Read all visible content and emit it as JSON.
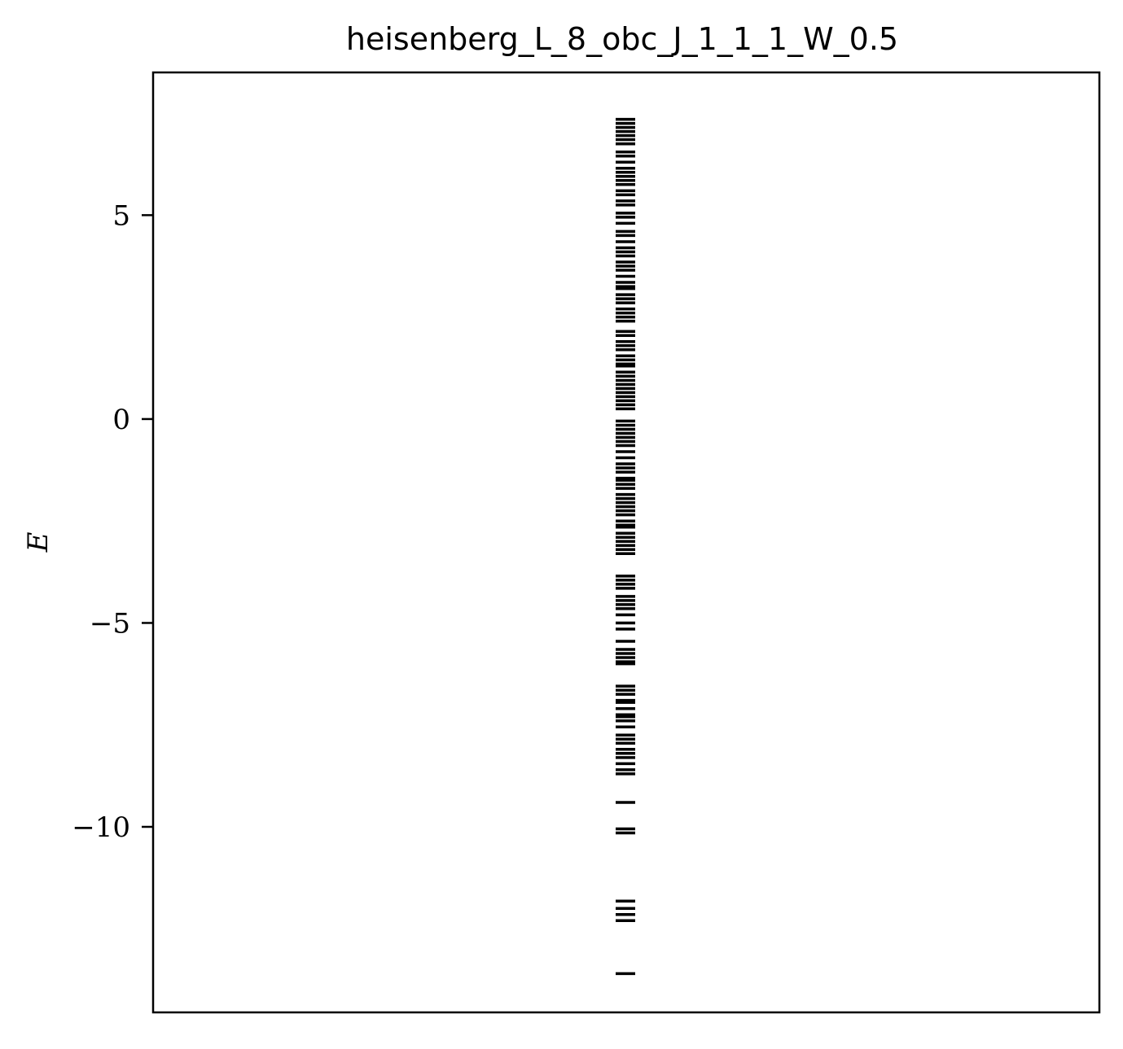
{
  "chart_data": {
    "type": "scatter",
    "title": "heisenberg_L_8_obc_J_1_1_1_W_0.5",
    "xlabel": "",
    "ylabel": "E",
    "marker": "horizontal-line",
    "color": "#000000",
    "ylim": [
      -14.55,
      8.5
    ],
    "yticks": [
      5,
      0,
      -5,
      -10
    ],
    "ytick_labels": [
      "5",
      "0",
      "−5",
      "−10"
    ],
    "grid": false,
    "x": 0,
    "energies": [
      -13.6,
      -12.3,
      -12.15,
      -12.0,
      -11.82,
      -10.15,
      -10.05,
      -9.4,
      -8.7,
      -8.6,
      -8.45,
      -8.3,
      -8.2,
      -8.1,
      -7.95,
      -7.85,
      -7.75,
      -7.55,
      -7.4,
      -7.3,
      -7.25,
      -7.1,
      -6.95,
      -6.9,
      -6.75,
      -6.65,
      -6.55,
      -6.0,
      -5.95,
      -5.85,
      -5.75,
      -5.65,
      -5.45,
      -5.15,
      -5.0,
      -4.8,
      -4.65,
      -4.55,
      -4.45,
      -4.35,
      -4.15,
      -4.05,
      -3.95,
      -3.85,
      -3.3,
      -3.2,
      -3.1,
      -3.0,
      -2.9,
      -2.8,
      -2.65,
      -2.6,
      -2.5,
      -2.35,
      -2.25,
      -2.15,
      -2.05,
      -1.95,
      -1.85,
      -1.7,
      -1.6,
      -1.5,
      -1.45,
      -1.3,
      -1.2,
      -1.1,
      -0.95,
      -0.8,
      -0.65,
      -0.55,
      -0.45,
      -0.35,
      -0.25,
      -0.15,
      -0.05,
      0.25,
      0.35,
      0.45,
      0.55,
      0.65,
      0.75,
      0.85,
      0.95,
      1.05,
      1.15,
      1.3,
      1.35,
      1.45,
      1.55,
      1.7,
      1.8,
      1.9,
      2.05,
      2.15,
      2.4,
      2.5,
      2.6,
      2.7,
      2.85,
      2.95,
      3.05,
      3.2,
      3.25,
      3.35,
      3.5,
      3.65,
      3.75,
      3.85,
      4.0,
      4.1,
      4.2,
      4.35,
      4.5,
      4.6,
      4.8,
      4.95,
      5.05,
      5.25,
      5.35,
      5.5,
      5.6,
      5.75,
      5.85,
      5.95,
      6.05,
      6.15,
      6.3,
      6.45,
      6.55,
      6.75,
      6.85,
      6.95,
      7.05,
      7.15,
      7.25,
      7.35
    ]
  }
}
